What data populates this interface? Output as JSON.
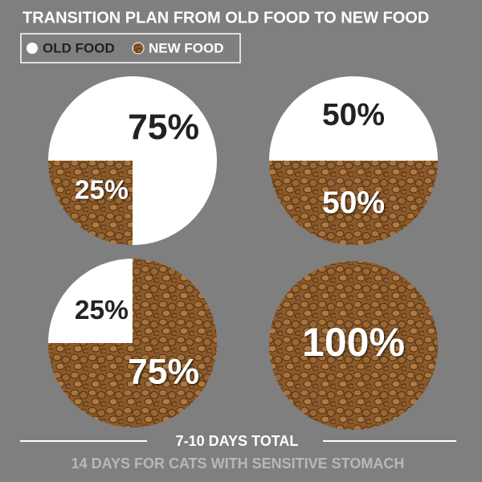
{
  "header": {
    "title": "TRANSITION PLAN FROM OLD FOOD TO NEW FOOD"
  },
  "legend": [
    "OLD FOOD",
    "NEW FOOD"
  ],
  "chart_data": [
    {
      "type": "pie",
      "values": [
        75,
        25
      ],
      "value_labels": [
        "75%",
        "25%"
      ],
      "colors": [
        "#ffffff",
        "#8b5a2b"
      ]
    },
    {
      "type": "pie",
      "values": [
        50,
        50
      ],
      "value_labels": [
        "50%",
        "50%"
      ],
      "colors": [
        "#ffffff",
        "#8b5a2b"
      ]
    },
    {
      "type": "pie",
      "values": [
        25,
        75
      ],
      "value_labels": [
        "25%",
        "75%"
      ],
      "colors": [
        "#ffffff",
        "#8b5a2b"
      ]
    },
    {
      "type": "pie",
      "values": [
        0,
        100
      ],
      "value_labels": [
        null,
        "100%"
      ],
      "colors": [
        "#ffffff",
        "#8b5a2b"
      ]
    }
  ],
  "footer": {
    "total": "7-10 DAYS TOTAL",
    "note": "14 DAYS FOR CATS WITH SENSITIVE STOMACH"
  }
}
